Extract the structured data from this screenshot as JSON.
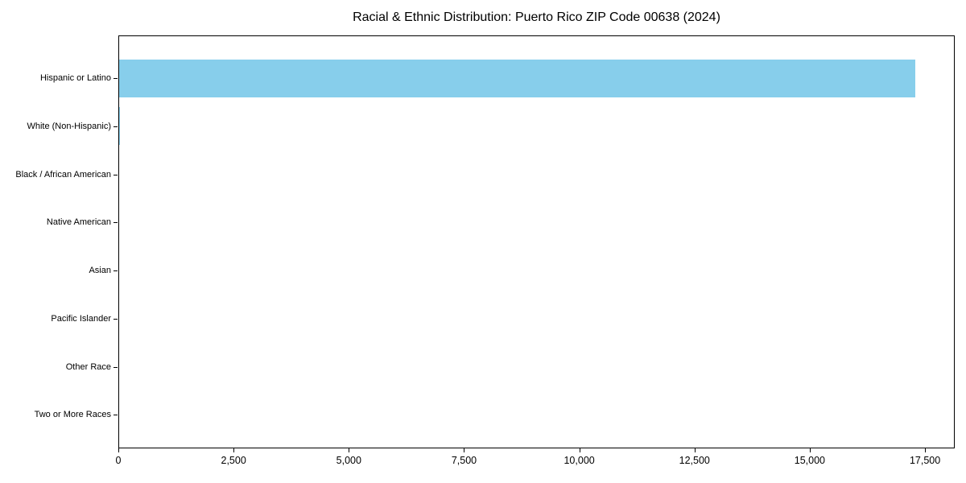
{
  "figure": {
    "title": "Racial & Ethnic Distribution: Puerto Rico ZIP Code 00638 (2024)"
  },
  "chart_data": {
    "type": "bar",
    "orientation": "horizontal",
    "title": "Racial & Ethnic Distribution: Puerto Rico ZIP Code 00638 (2024)",
    "categories": [
      "Hispanic or Latino",
      "White (Non-Hispanic)",
      "Black / African American",
      "Native American",
      "Asian",
      "Pacific Islander",
      "Other Race",
      "Two or More Races"
    ],
    "values": [
      17270,
      25,
      0,
      0,
      0,
      0,
      0,
      0
    ],
    "xlabel": "",
    "ylabel": "",
    "xlim": [
      0,
      18145
    ],
    "x_ticks": [
      0,
      2500,
      5000,
      7500,
      10000,
      12500,
      15000,
      17500
    ],
    "x_tick_labels": [
      "0",
      "2,500",
      "5,000",
      "7,500",
      "10,000",
      "12,500",
      "15,000",
      "17,500"
    ],
    "bar_color": "#87CEEB",
    "grid": false,
    "legend": false,
    "category_axis": "y"
  }
}
